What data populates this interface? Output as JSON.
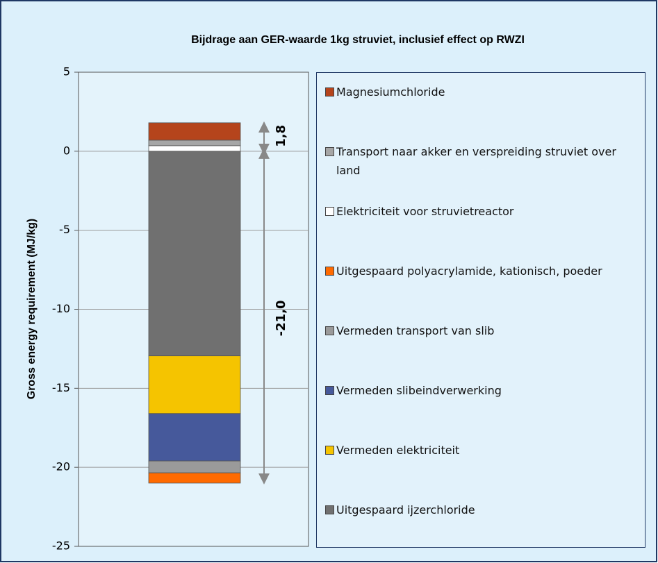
{
  "chart_data": {
    "type": "stacked_bar",
    "title": "Bijdrage aan GER-waarde 1kg struviet, inclusief effect op RWZI",
    "y_label": "Gross energy requirement (MJ/kg)",
    "categories": [
      null
    ],
    "series": [
      {
        "name": "Uitgespaard ijzerchloride",
        "color": "#707070",
        "values": [
          -12.95
        ]
      },
      {
        "name": "Vermeden elektriciteit",
        "color": "#f5c400",
        "values": [
          -3.65
        ]
      },
      {
        "name": "Vermeden slibeindverwerking",
        "color": "#46599b",
        "values": [
          -3.0
        ]
      },
      {
        "name": "Vermeden transport van slib",
        "color": "#9a9a9a",
        "values": [
          -0.75
        ]
      },
      {
        "name": "Uitgespaard polyacrylamide, kationisch, poeder",
        "color": "#ff6a00",
        "values": [
          -0.65
        ]
      },
      {
        "name": "Elektriciteit voor struvietreactor",
        "color": "#ffffff",
        "values": [
          0.35
        ]
      },
      {
        "name": "Transport naar akker en verspreiding struviet over land",
        "color": "#a6a6a6",
        "values": [
          0.35
        ]
      },
      {
        "name": "Magnesiumchloride",
        "color": "#b5441c",
        "values": [
          1.1
        ]
      }
    ],
    "annotations": [
      {
        "value": 1.8,
        "label": "1,8"
      },
      {
        "value": -21.0,
        "label": "-21,0"
      }
    ],
    "ylim": [
      -25,
      5
    ],
    "yticks": [
      5,
      0,
      -5,
      -10,
      -15,
      -20,
      -25
    ],
    "grid": true
  }
}
